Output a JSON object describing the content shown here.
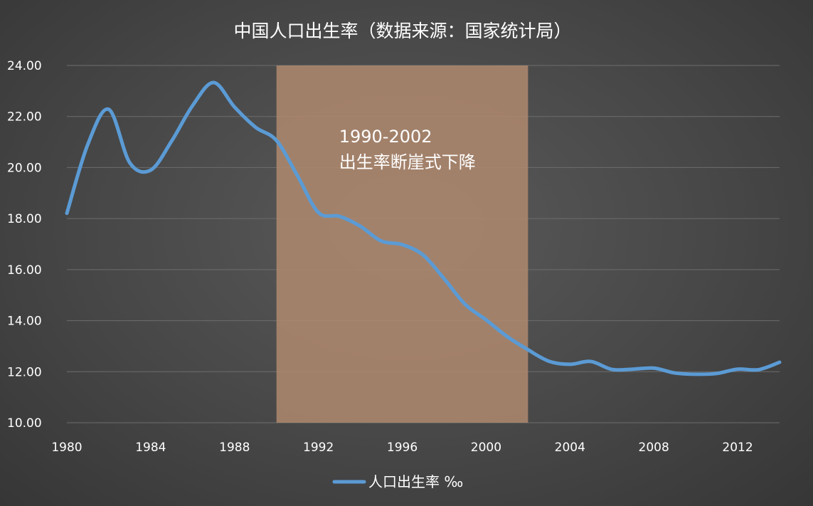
{
  "chart_data": {
    "type": "line",
    "title": "中国人口出生率（数据来源：国家统计局）",
    "xlabel": "",
    "ylabel": "",
    "xlim": [
      1980,
      2014
    ],
    "ylim": [
      10,
      24
    ],
    "x_ticks": [
      1980,
      1984,
      1988,
      1992,
      1996,
      2000,
      2004,
      2008,
      2012
    ],
    "y_ticks": [
      "10.00",
      "12.00",
      "14.00",
      "16.00",
      "18.00",
      "20.00",
      "22.00",
      "24.00"
    ],
    "grid": true,
    "legend": "bottom",
    "series": [
      {
        "name": "人口出生率 ‰",
        "color": "#5b9bd5",
        "x": [
          1980,
          1981,
          1982,
          1983,
          1984,
          1985,
          1986,
          1987,
          1988,
          1989,
          1990,
          1991,
          1992,
          1993,
          1994,
          1995,
          1996,
          1997,
          1998,
          1999,
          2000,
          2001,
          2002,
          2003,
          2004,
          2005,
          2006,
          2007,
          2008,
          2009,
          2010,
          2011,
          2012,
          2013,
          2014
        ],
        "values": [
          18.21,
          20.91,
          22.28,
          20.19,
          19.9,
          21.04,
          22.43,
          23.33,
          22.37,
          21.58,
          21.06,
          19.68,
          18.24,
          18.09,
          17.7,
          17.12,
          16.98,
          16.57,
          15.64,
          14.64,
          14.03,
          13.38,
          12.86,
          12.41,
          12.29,
          12.4,
          12.09,
          12.1,
          12.14,
          11.95,
          11.9,
          11.93,
          12.1,
          12.08,
          12.37
        ]
      }
    ],
    "annotations": [
      {
        "type": "shaded-range",
        "x_start": 1990,
        "x_end": 2002,
        "color": "#b08a6e",
        "text": [
          "1990-2002",
          "出生率断崖式下降"
        ]
      }
    ]
  }
}
